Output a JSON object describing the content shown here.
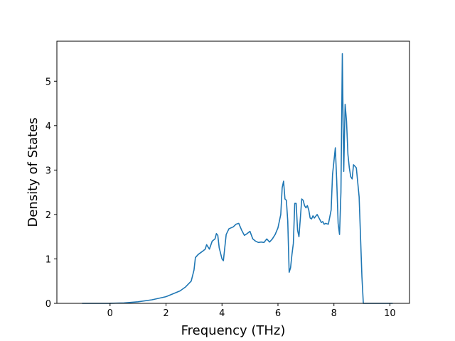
{
  "chart_data": {
    "type": "line",
    "title": "",
    "xlabel": "Frequency (THz)",
    "ylabel": "Density of States",
    "xlim": [
      -1.9,
      10.7
    ],
    "ylim": [
      0,
      5.9
    ],
    "xticks": [
      0,
      2,
      4,
      6,
      8,
      10
    ],
    "yticks": [
      0,
      1,
      2,
      3,
      4,
      5
    ],
    "grid": false,
    "series_color": "#1f77b4",
    "series": [
      {
        "x": [
          -1.0,
          -0.5,
          0.0,
          0.5,
          1.0,
          1.5,
          2.0,
          2.5,
          2.7,
          2.9,
          3.0,
          3.05,
          3.15,
          3.3,
          3.4,
          3.45,
          3.55,
          3.65,
          3.75,
          3.8,
          3.85,
          3.9,
          4.0,
          4.05,
          4.15,
          4.25,
          4.4,
          4.5,
          4.6,
          4.7,
          4.8,
          4.9,
          5.0,
          5.1,
          5.2,
          5.3,
          5.4,
          5.5,
          5.6,
          5.7,
          5.8,
          5.9,
          6.0,
          6.1,
          6.15,
          6.2,
          6.25,
          6.3,
          6.35,
          6.4,
          6.45,
          6.5,
          6.55,
          6.6,
          6.65,
          6.7,
          6.75,
          6.8,
          6.85,
          6.9,
          6.95,
          7.0,
          7.05,
          7.1,
          7.15,
          7.2,
          7.25,
          7.3,
          7.4,
          7.5,
          7.55,
          7.6,
          7.65,
          7.7,
          7.8,
          7.9,
          7.95,
          8.0,
          8.05,
          8.1,
          8.15,
          8.2,
          8.25,
          8.3,
          8.35,
          8.4,
          8.45,
          8.5,
          8.55,
          8.6,
          8.65,
          8.7,
          8.8,
          8.9,
          8.95,
          9.0,
          9.05,
          9.1,
          9.15,
          9.2,
          9.25,
          9.3,
          9.5,
          9.8,
          10.1
        ],
        "y": [
          0,
          0,
          0.001,
          0.01,
          0.035,
          0.08,
          0.15,
          0.28,
          0.37,
          0.5,
          0.75,
          1.03,
          1.1,
          1.17,
          1.22,
          1.32,
          1.22,
          1.4,
          1.45,
          1.57,
          1.53,
          1.25,
          1.0,
          0.96,
          1.55,
          1.68,
          1.72,
          1.78,
          1.8,
          1.65,
          1.53,
          1.57,
          1.62,
          1.45,
          1.4,
          1.37,
          1.38,
          1.37,
          1.45,
          1.38,
          1.45,
          1.55,
          1.7,
          2.0,
          2.6,
          2.75,
          2.35,
          2.32,
          1.85,
          0.7,
          0.8,
          1.1,
          1.35,
          2.25,
          2.25,
          1.65,
          1.5,
          1.92,
          2.35,
          2.32,
          2.2,
          2.15,
          2.2,
          2.1,
          1.92,
          1.9,
          1.97,
          1.92,
          2.0,
          1.88,
          1.82,
          1.84,
          1.78,
          1.8,
          1.78,
          2.1,
          2.9,
          3.2,
          3.5,
          2.75,
          1.8,
          1.55,
          2.5,
          5.62,
          2.97,
          4.48,
          4.1,
          3.35,
          3.05,
          2.85,
          2.8,
          3.12,
          3.05,
          2.4,
          1.5,
          0.6,
          0.0,
          0.0,
          0.0,
          0.0,
          0.0,
          0.0,
          0.0,
          0.0,
          0.0
        ],
        "note": ""
      }
    ]
  }
}
